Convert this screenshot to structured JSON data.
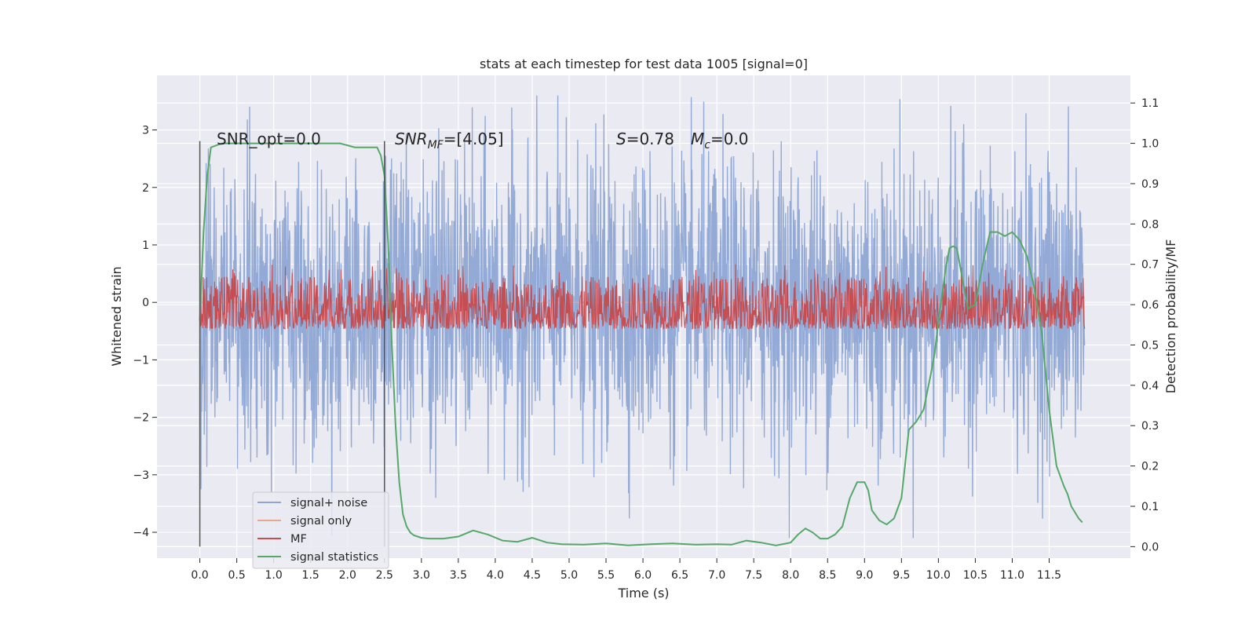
{
  "chart_data": {
    "type": "line",
    "title": "stats at each timestep for test data 1005 [signal=0]",
    "xlabel": "Time (s)",
    "ylabel": "Whitened strain",
    "y2label": "Detection probability/MF",
    "xlim": [
      -0.58,
      12.6
    ],
    "ylim": [
      -4.45,
      3.95
    ],
    "y2lim": [
      -0.0285,
      1.1685
    ],
    "grid": true,
    "legend_position": "lower-left",
    "xticks": [
      0.0,
      0.5,
      1.0,
      1.5,
      2.0,
      2.5,
      3.0,
      3.5,
      4.0,
      4.5,
      5.0,
      5.5,
      6.0,
      6.5,
      7.0,
      7.5,
      8.0,
      8.5,
      9.0,
      9.5,
      10.0,
      10.5,
      11.0,
      11.5
    ],
    "xtick_labels": [
      "0.0",
      "0.5",
      "1.0",
      "1.5",
      "2.0",
      "2.5",
      "3.0",
      "3.5",
      "4.0",
      "4.5",
      "5.0",
      "5.5",
      "6.0",
      "6.5",
      "7.0",
      "7.5",
      "8.0",
      "8.5",
      "9.0",
      "9.5",
      "10.0",
      "10.5",
      "11.0",
      "11.5"
    ],
    "yticks": [
      -4,
      -3,
      -2,
      -1,
      0,
      1,
      2,
      3
    ],
    "ytick_labels": [
      "−4",
      "−3",
      "−2",
      "−1",
      "0",
      "1",
      "2",
      "3"
    ],
    "y2ticks": [
      0.0,
      0.1,
      0.2,
      0.3,
      0.4,
      0.5,
      0.6,
      0.7,
      0.8,
      0.9,
      1.0,
      1.1
    ],
    "y2tick_labels": [
      "0.0",
      "0.1",
      "0.2",
      "0.3",
      "0.4",
      "0.5",
      "0.6",
      "0.7",
      "0.8",
      "0.9",
      "1.0",
      "1.1"
    ],
    "vlines": [
      0.0,
      2.5
    ],
    "annotations": {
      "snr_opt": "SNR_opt=0.0",
      "snr_mf_sym": "SNR",
      "snr_mf_sub": "MF",
      "snr_mf_val": "=[4.05]",
      "s_sym": "S",
      "s_val": "=0.78",
      "mc_sym": "M",
      "mc_sub": "c",
      "mc_val": "=0.0"
    },
    "series": [
      {
        "name": "signal+ noise",
        "color": "#8fa6d4",
        "axis": "left",
        "style": "noise",
        "x_range": [
          0.0,
          11.98
        ],
        "typical_range": [
          -1.5,
          1.5
        ],
        "extremes": [
          -4.1,
          3.6
        ]
      },
      {
        "name": "signal only",
        "color": "#e8a98a",
        "axis": "left",
        "style": "flat",
        "value": 0.0
      },
      {
        "name": "MF",
        "color": "#c44e52",
        "axis": "right",
        "style": "noise",
        "x_range": [
          0.0,
          11.98
        ],
        "typical_range": [
          0.54,
          0.67
        ],
        "extremes": [
          0.54,
          0.7
        ]
      },
      {
        "name": "signal statistics",
        "color": "#55a868",
        "axis": "right",
        "style": "line",
        "x": [
          0.0,
          0.05,
          0.1,
          0.15,
          0.3,
          0.6,
          1.0,
          1.5,
          1.9,
          2.1,
          2.3,
          2.4,
          2.45,
          2.5,
          2.55,
          2.6,
          2.65,
          2.7,
          2.75,
          2.8,
          2.85,
          2.9,
          3.0,
          3.1,
          3.3,
          3.5,
          3.7,
          3.9,
          4.1,
          4.3,
          4.5,
          4.7,
          4.9,
          5.2,
          5.5,
          5.8,
          6.1,
          6.4,
          6.7,
          7.0,
          7.2,
          7.4,
          7.6,
          7.8,
          8.0,
          8.1,
          8.2,
          8.3,
          8.4,
          8.5,
          8.6,
          8.7,
          8.8,
          8.9,
          9.0,
          9.05,
          9.1,
          9.2,
          9.3,
          9.4,
          9.5,
          9.6,
          9.7,
          9.8,
          9.9,
          9.95,
          10.0,
          10.1,
          10.15,
          10.2,
          10.25,
          10.3,
          10.4,
          10.5,
          10.6,
          10.65,
          10.7,
          10.8,
          10.9,
          11.0,
          11.1,
          11.2,
          11.3,
          11.4,
          11.5,
          11.6,
          11.7,
          11.75,
          11.8,
          11.9,
          11.95
        ],
        "y": [
          0.56,
          0.78,
          0.92,
          0.99,
          1.0,
          1.0,
          1.0,
          1.0,
          1.0,
          0.99,
          0.99,
          0.99,
          0.97,
          0.92,
          0.75,
          0.5,
          0.3,
          0.16,
          0.08,
          0.05,
          0.035,
          0.028,
          0.022,
          0.02,
          0.02,
          0.025,
          0.04,
          0.03,
          0.015,
          0.012,
          0.022,
          0.01,
          0.006,
          0.005,
          0.008,
          0.003,
          0.006,
          0.008,
          0.005,
          0.006,
          0.005,
          0.015,
          0.01,
          0.003,
          0.01,
          0.03,
          0.045,
          0.035,
          0.02,
          0.02,
          0.03,
          0.05,
          0.12,
          0.16,
          0.16,
          0.14,
          0.09,
          0.065,
          0.055,
          0.07,
          0.12,
          0.29,
          0.31,
          0.34,
          0.43,
          0.48,
          0.56,
          0.69,
          0.74,
          0.745,
          0.74,
          0.69,
          0.59,
          0.6,
          0.7,
          0.74,
          0.78,
          0.78,
          0.77,
          0.78,
          0.76,
          0.72,
          0.64,
          0.53,
          0.34,
          0.2,
          0.15,
          0.13,
          0.1,
          0.07,
          0.06
        ]
      }
    ]
  }
}
